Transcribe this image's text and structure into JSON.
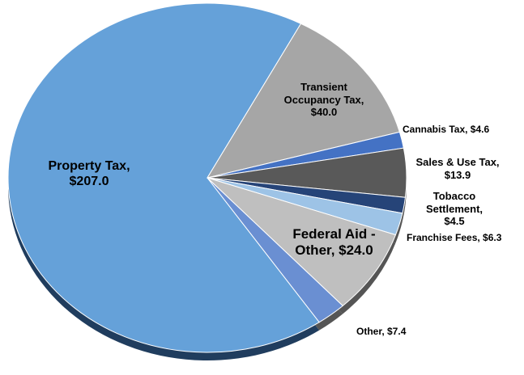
{
  "chart_data": {
    "type": "pie",
    "values": [
      207.0,
      40.0,
      4.6,
      13.9,
      4.5,
      6.3,
      24.0,
      7.4
    ],
    "value_labels": [
      "Property Tax, $207.0",
      "Transient Occupancy Tax, $40.0",
      "Cannabis Tax, $4.6",
      "Sales & Use Tax, $13.9",
      "Tobacco Settlement, $4.5",
      "Franchise Fees, $6.3",
      "Federal Aid - Other, $24.0",
      "Other, $7.4"
    ],
    "colors": [
      "#65a1d9",
      "#a6a6a6",
      "#4472c4",
      "#595959",
      "#264478",
      "#9dc3e6",
      "#bfbfbf",
      "#6a8fd2"
    ]
  }
}
